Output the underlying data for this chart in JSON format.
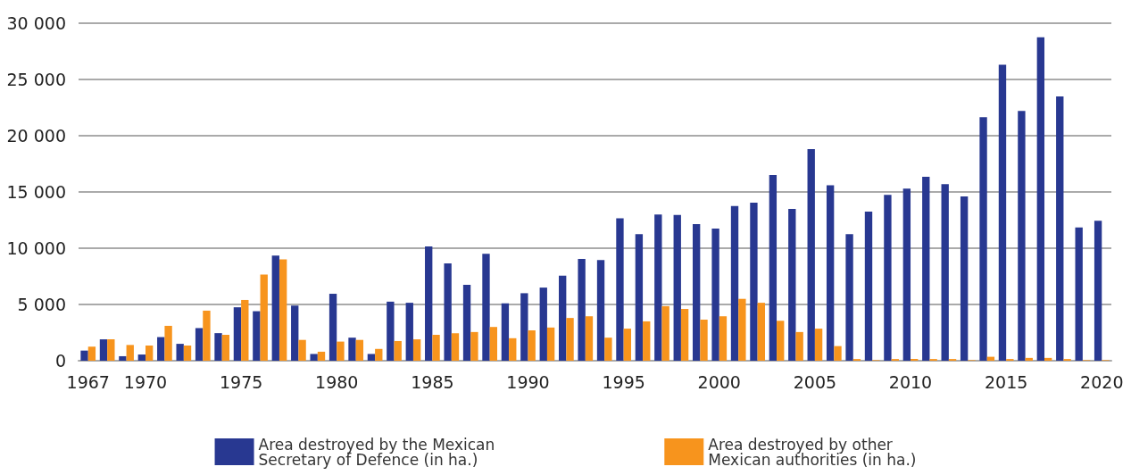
{
  "chart_data": {
    "type": "bar",
    "categories": [
      "1967",
      null,
      null,
      "1970",
      null,
      null,
      null,
      null,
      "1975",
      null,
      null,
      null,
      null,
      "1980",
      null,
      null,
      null,
      null,
      "1985",
      null,
      null,
      null,
      null,
      "1990",
      null,
      null,
      null,
      null,
      "1995",
      null,
      null,
      null,
      null,
      "2000",
      null,
      null,
      null,
      null,
      "2005",
      null,
      null,
      null,
      null,
      "2010",
      null,
      null,
      null,
      null,
      "2015",
      null,
      null,
      null,
      null,
      "2020"
    ],
    "series": [
      {
        "name": "Area destroyed by the Mexican\nSecretary of Defence (in ha.)",
        "color": "#283891",
        "values": [
          900,
          1900,
          400,
          550,
          2100,
          1500,
          2900,
          2450,
          4750,
          4400,
          9350,
          4900,
          600,
          5950,
          2050,
          600,
          5250,
          5150,
          10150,
          8650,
          6750,
          9500,
          5100,
          6000,
          6500,
          7550,
          9050,
          8950,
          12650,
          11250,
          13000,
          12950,
          12150,
          11750,
          13750,
          14050,
          16500,
          13500,
          18800,
          15600,
          11250,
          13250,
          14750,
          15300,
          16350,
          15700,
          14600,
          21650,
          26300,
          22200,
          28750,
          23500,
          11850,
          12450
        ]
      },
      {
        "name": "Area destroyed by other\nMexican authorities (in ha.)",
        "color": "#f7941d",
        "values": [
          1250,
          1900,
          1400,
          1350,
          3100,
          1350,
          4450,
          2300,
          5400,
          7650,
          9000,
          1850,
          800,
          1700,
          1850,
          1050,
          1750,
          1900,
          2300,
          2450,
          2550,
          3000,
          2000,
          2700,
          2950,
          3800,
          3950,
          2050,
          2850,
          3500,
          4850,
          4600,
          3650,
          3950,
          5500,
          5150,
          3550,
          2550,
          2850,
          1300,
          150,
          50,
          150,
          150,
          150,
          150,
          50,
          350,
          150,
          250,
          250,
          150,
          50,
          50
        ]
      }
    ],
    "ylim": [
      0,
      30000
    ],
    "yticks": [
      {
        "value": 0,
        "label": "0"
      },
      {
        "value": 5000,
        "label": "5 000"
      },
      {
        "value": 10000,
        "label": "10 000"
      },
      {
        "value": 15000,
        "label": "15 000"
      },
      {
        "value": 20000,
        "label": "20 000"
      },
      {
        "value": 25000,
        "label": "25 000"
      },
      {
        "value": 30000,
        "label": "30 000"
      }
    ],
    "grid": "y",
    "legend": "bottom"
  }
}
